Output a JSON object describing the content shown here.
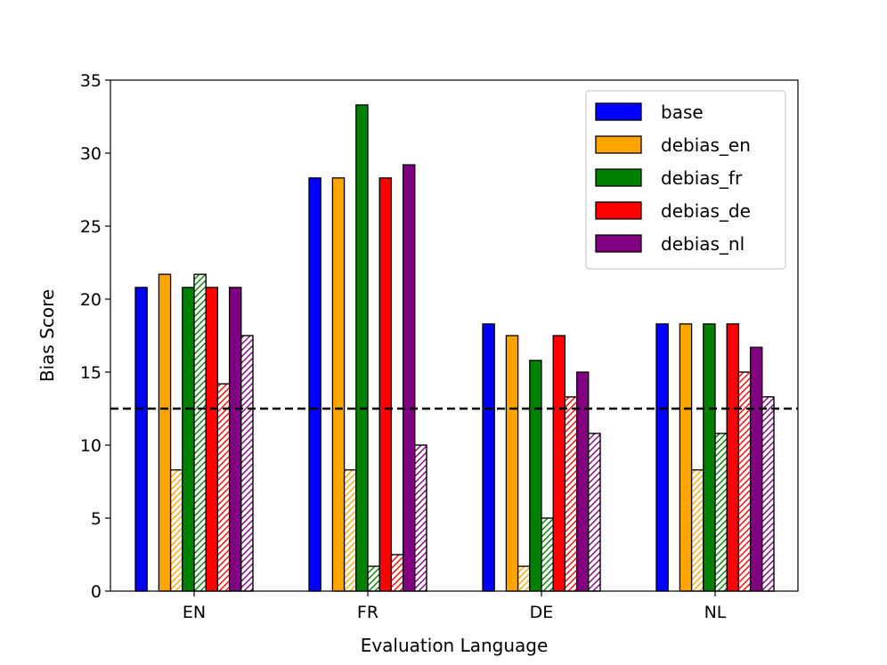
{
  "chart_data": {
    "type": "bar",
    "title": "",
    "xlabel": "Evaluation Language",
    "ylabel": "Bias Score",
    "ylim": [
      0,
      35
    ],
    "yticks": [
      0,
      5,
      10,
      15,
      20,
      25,
      30,
      35
    ],
    "grid": false,
    "legend_position": "top-right",
    "categories": [
      "EN",
      "FR",
      "DE",
      "NL"
    ],
    "reference_line": {
      "y": 12.5,
      "style": "dashed",
      "color": "#000000"
    },
    "series": [
      {
        "name": "base",
        "color": "#0000ff",
        "solid": [
          20.8,
          28.3,
          18.3,
          18.3
        ],
        "hatched": [
          null,
          null,
          null,
          null
        ]
      },
      {
        "name": "debias_en",
        "color": "#ffa500",
        "solid": [
          21.7,
          28.3,
          17.5,
          18.3
        ],
        "hatched": [
          8.3,
          8.3,
          1.7,
          8.3
        ]
      },
      {
        "name": "debias_fr",
        "color": "#008000",
        "solid": [
          20.8,
          33.3,
          15.8,
          18.3
        ],
        "hatched": [
          21.7,
          1.7,
          5.0,
          10.8
        ]
      },
      {
        "name": "debias_de",
        "color": "#ff0000",
        "solid": [
          20.8,
          28.3,
          17.5,
          18.3
        ],
        "hatched": [
          14.2,
          2.5,
          13.3,
          15.0
        ]
      },
      {
        "name": "debias_nl",
        "color": "#800080",
        "solid": [
          20.8,
          29.2,
          15.0,
          16.7
        ],
        "hatched": [
          17.5,
          10.0,
          10.8,
          13.3
        ]
      }
    ]
  }
}
